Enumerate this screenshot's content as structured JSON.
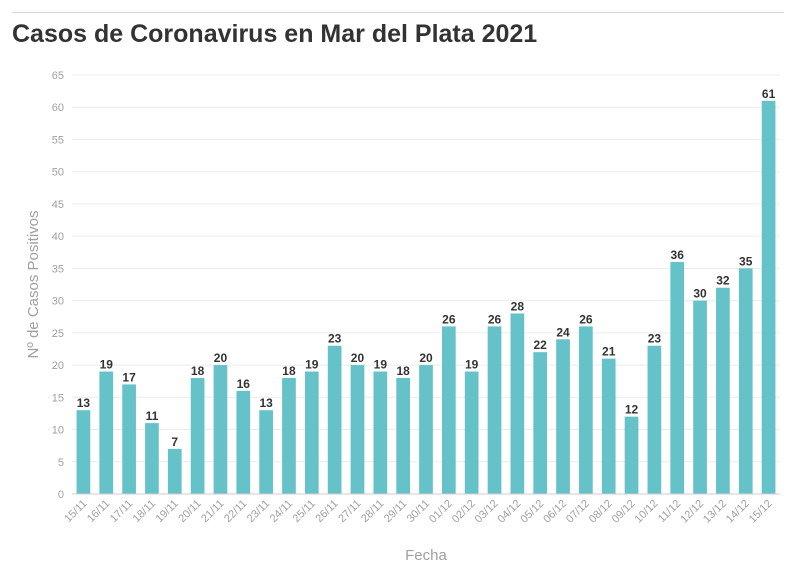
{
  "chart_data": {
    "type": "bar",
    "title": "Casos de Coronavirus en Mar del Plata 2021",
    "xlabel": "Fecha",
    "ylabel": "Nº de Casos Positivos",
    "ylim": [
      0,
      65
    ],
    "yticks": [
      0,
      5,
      10,
      15,
      20,
      25,
      30,
      35,
      40,
      45,
      50,
      55,
      60,
      65
    ],
    "grid": true,
    "bar_color": "#66c2c9",
    "categories": [
      "15/11",
      "16/11",
      "17/11",
      "18/11",
      "19/11",
      "20/11",
      "21/11",
      "22/11",
      "23/11",
      "24/11",
      "25/11",
      "26/11",
      "27/11",
      "28/11",
      "29/11",
      "30/11",
      "01/12",
      "02/12",
      "03/12",
      "04/12",
      "05/12",
      "06/12",
      "07/12",
      "08/12",
      "09/12",
      "10/12",
      "11/12",
      "12/12",
      "13/12",
      "14/12",
      "15/12"
    ],
    "values": [
      13,
      19,
      17,
      11,
      7,
      18,
      20,
      16,
      13,
      18,
      19,
      23,
      20,
      19,
      18,
      20,
      26,
      19,
      26,
      28,
      22,
      24,
      26,
      21,
      12,
      23,
      36,
      30,
      32,
      35,
      61
    ]
  }
}
